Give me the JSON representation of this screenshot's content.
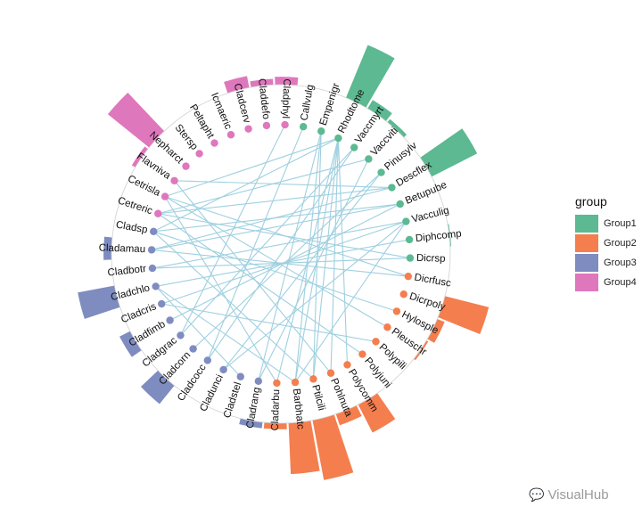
{
  "chart_data": {
    "type": "circular-bar-network",
    "legend_title": "group",
    "groups": [
      {
        "name": "Group1",
        "color": "#5cb991"
      },
      {
        "name": "Group2",
        "color": "#f47e4e"
      },
      {
        "name": "Group3",
        "color": "#7e8cc0"
      },
      {
        "name": "Group4",
        "color": "#df77bd"
      }
    ],
    "nodes": [
      {
        "name": "Callvulg",
        "group": "Group1",
        "value": 0.25
      },
      {
        "name": "Empenigr",
        "group": "Group1",
        "value": 0.4
      },
      {
        "name": "Rhodtome",
        "group": "Group1",
        "value": 3.6
      },
      {
        "name": "Vaccmyrt",
        "group": "Group1",
        "value": 1.2
      },
      {
        "name": "Vaccviti",
        "group": "Group1",
        "value": 0.9
      },
      {
        "name": "Pinusylv",
        "group": "Group1",
        "value": 0.6
      },
      {
        "name": "Descflex",
        "group": "Group1",
        "value": 3.3
      },
      {
        "name": "Betupube",
        "group": "Group1",
        "value": 0.7
      },
      {
        "name": "Vacculig",
        "group": "Group1",
        "value": 0.4
      },
      {
        "name": "Diphcomp",
        "group": "Group1",
        "value": 0.75
      },
      {
        "name": "Dicrsp",
        "group": "Group1",
        "value": 0.15
      },
      {
        "name": "Dicrfusc",
        "group": "Group2",
        "value": 0.2
      },
      {
        "name": "Dicrpoly",
        "group": "Group2",
        "value": 3.0
      },
      {
        "name": "Hylosple",
        "group": "Group2",
        "value": 1.1
      },
      {
        "name": "Pleuschr",
        "group": "Group2",
        "value": 0.8
      },
      {
        "name": "Polypili",
        "group": "Group2",
        "value": 0.6
      },
      {
        "name": "Polyjuni",
        "group": "Group2",
        "value": 0.5
      },
      {
        "name": "Polycomm",
        "group": "Group2",
        "value": 2.3
      },
      {
        "name": "Pohlnuta",
        "group": "Group2",
        "value": 1.3
      },
      {
        "name": "Ptilcili",
        "group": "Group2",
        "value": 3.8
      },
      {
        "name": "Barbhatc",
        "group": "Group2",
        "value": 3.3
      },
      {
        "name": "Cladarbu",
        "group": "Group2",
        "value": 1.0
      },
      {
        "name": "Cladrang",
        "group": "Group3",
        "value": 1.0
      },
      {
        "name": "Cladstel",
        "group": "Group3",
        "value": 0.2
      },
      {
        "name": "Cladunci",
        "group": "Group3",
        "value": 0.6
      },
      {
        "name": "Cladcocc",
        "group": "Group3",
        "value": 0.6
      },
      {
        "name": "Cladcorn",
        "group": "Group3",
        "value": 1.9
      },
      {
        "name": "Cladgrac",
        "group": "Group3",
        "value": 0.2
      },
      {
        "name": "Cladfimb",
        "group": "Group3",
        "value": 1.3
      },
      {
        "name": "Cladcris",
        "group": "Group3",
        "value": 0.5
      },
      {
        "name": "Cladchlo",
        "group": "Group3",
        "value": 2.6
      },
      {
        "name": "Cladbotr",
        "group": "Group3",
        "value": 0.5
      },
      {
        "name": "Cladamau",
        "group": "Group3",
        "value": 1.1
      },
      {
        "name": "Cladsp",
        "group": "Group3",
        "value": 0.05
      },
      {
        "name": "Cetreric",
        "group": "Group4",
        "value": 0.1
      },
      {
        "name": "Cetrisla",
        "group": "Group4",
        "value": 0.3
      },
      {
        "name": "Flavniva",
        "group": "Group4",
        "value": 0.9
      },
      {
        "name": "Nepharct",
        "group": "Group4",
        "value": 3.4
      },
      {
        "name": "Stersp",
        "group": "Group4",
        "value": 0.4
      },
      {
        "name": "Peltapht",
        "group": "Group4",
        "value": 0.5
      },
      {
        "name": "Icmaeric",
        "group": "Group4",
        "value": 0.6
      },
      {
        "name": "Cladcerv",
        "group": "Group4",
        "value": 1.3
      },
      {
        "name": "Claddefo",
        "group": "Group4",
        "value": 1.0
      },
      {
        "name": "Cladphyl",
        "group": "Group4",
        "value": 1.1
      }
    ],
    "edges": [
      [
        "Rhodtome",
        "Ptilcili"
      ],
      [
        "Rhodtome",
        "Barbhatc"
      ],
      [
        "Rhodtome",
        "Pohlnuta"
      ],
      [
        "Rhodtome",
        "Cladarbu"
      ],
      [
        "Rhodtome",
        "Polycomm"
      ],
      [
        "Rhodtome",
        "Cladsp"
      ],
      [
        "Rhodtome",
        "Cetrisla"
      ],
      [
        "Empenigr",
        "Ptilcili"
      ],
      [
        "Empenigr",
        "Barbhatc"
      ],
      [
        "Empenigr",
        "Cladrang"
      ],
      [
        "Vaccmyrt",
        "Cladcocc"
      ],
      [
        "Vaccmyrt",
        "Cladgrac"
      ],
      [
        "Vaccviti",
        "Cetreric"
      ],
      [
        "Vaccviti",
        "Cladrang"
      ],
      [
        "Pinusylv",
        "Cladunci"
      ],
      [
        "Descflex",
        "Cetreric"
      ],
      [
        "Descflex",
        "Cladamau"
      ],
      [
        "Descflex",
        "Flavniva"
      ],
      [
        "Betupube",
        "Cladsp"
      ],
      [
        "Betupube",
        "Cladfimb"
      ],
      [
        "Betupube",
        "Cladamau"
      ],
      [
        "Vacculig",
        "Cladbotr"
      ],
      [
        "Vacculig",
        "Cladcris"
      ],
      [
        "Vacculig",
        "Barbhatc"
      ],
      [
        "Diphcomp",
        "Cladchlo"
      ],
      [
        "Dicrsp",
        "Cetreric"
      ],
      [
        "Dicrsp",
        "Cladbotr"
      ],
      [
        "Dicrfusc",
        "Cetrisla"
      ],
      [
        "Dicrfusc",
        "Cladamau"
      ],
      [
        "Hylosple",
        "Cladsp"
      ],
      [
        "Pleuschr",
        "Cetrisla"
      ],
      [
        "Polyjuni",
        "Cetreric"
      ],
      [
        "Cladcorn",
        "Pinusylv"
      ],
      [
        "Cladarbu",
        "Cetrisla"
      ],
      [
        "Barbhatc",
        "Cladchlo"
      ],
      [
        "Ptilcili",
        "Cladsp"
      ],
      [
        "Pohlnuta",
        "Flavniva"
      ],
      [
        "Cladstel",
        "Cladchlo"
      ],
      [
        "Cladgrac",
        "Cladphyl"
      ],
      [
        "Cladunci",
        "Vacculig"
      ],
      [
        "Polypili",
        "Cladcris"
      ],
      [
        "Callvulg",
        "Cladcocc"
      ]
    ]
  },
  "watermark": {
    "icon": "wechat-icon",
    "text": "VisualHub"
  }
}
